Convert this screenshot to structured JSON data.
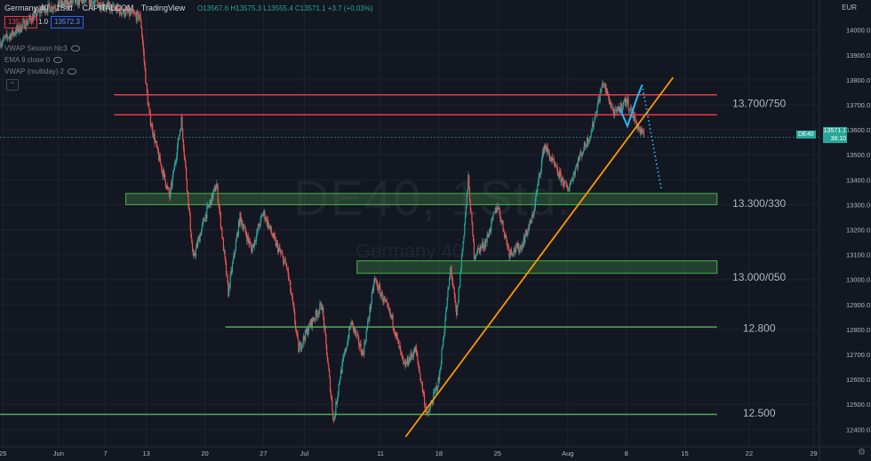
{
  "header": {
    "symbol": "Germany 40",
    "interval": "1Std.",
    "exchange": "CAPITALCOM",
    "source": "TradingView",
    "ohlc": "O13567.6 H13575.3 L13555.4 C13571.1 +3.7 (+0.03%)"
  },
  "order_panel": {
    "bid": "13571.3",
    "quantity": "1.0",
    "ask": "13572.3"
  },
  "indicators": [
    "VWAP Session hlc3",
    "EMA 9 close 0",
    "VWAP (multiday) 2"
  ],
  "watermark": {
    "symbol": "DE40, 1Std.",
    "name": "Germany 40"
  },
  "currency": "EUR",
  "last_price": {
    "value": "13571.1",
    "countdown": "38:10",
    "symbol": "DE40"
  },
  "colors": {
    "background": "#131722",
    "up": "#26a69a",
    "down": "#ef5350",
    "resistance": "#f23645",
    "support": "#4caf50",
    "trendline": "#ff9800",
    "projection": "#29b6f6"
  },
  "chart_data": {
    "type": "candlestick",
    "ylim": [
      12330,
      14120
    ],
    "y_ticks": [
      12400,
      12500,
      12600,
      12700,
      12800,
      12900,
      13000,
      13100,
      13200,
      13300,
      13400,
      13500,
      13600,
      13700,
      13800,
      13900,
      14000
    ],
    "x_ticks": [
      "25",
      "Jun",
      "7",
      "13",
      "20",
      "27",
      "Jul",
      "11",
      "18",
      "25",
      "Aug",
      "8",
      "15",
      "22",
      "29"
    ],
    "x_tick_index": [
      0.5,
      10,
      18,
      25,
      35,
      45,
      52,
      65,
      75,
      85,
      97,
      107,
      117,
      128,
      139
    ],
    "x_index_range": [
      0,
      140
    ],
    "price_path": [
      [
        0,
        13950
      ],
      [
        3,
        14000
      ],
      [
        7,
        14080
      ],
      [
        10,
        14100
      ],
      [
        15,
        14120
      ],
      [
        24,
        14050
      ],
      [
        25,
        13770
      ],
      [
        25.5,
        13660
      ],
      [
        27,
        13500
      ],
      [
        29,
        13330
      ],
      [
        31,
        13640
      ],
      [
        33,
        13080
      ],
      [
        35,
        13250
      ],
      [
        37,
        13380
      ],
      [
        39,
        12950
      ],
      [
        41,
        13250
      ],
      [
        43,
        13120
      ],
      [
        45,
        13270
      ],
      [
        47,
        13150
      ],
      [
        49,
        13050
      ],
      [
        50,
        12900
      ],
      [
        51,
        12720
      ],
      [
        53,
        12820
      ],
      [
        55,
        12900
      ],
      [
        57,
        12430
      ],
      [
        58,
        12600
      ],
      [
        60,
        12830
      ],
      [
        62,
        12700
      ],
      [
        64,
        13000
      ],
      [
        67,
        12840
      ],
      [
        69,
        12650
      ],
      [
        71,
        12720
      ],
      [
        73,
        12450
      ],
      [
        75,
        12600
      ],
      [
        77,
        13050
      ],
      [
        78,
        12850
      ],
      [
        79,
        13120
      ],
      [
        80,
        13400
      ],
      [
        81,
        13100
      ],
      [
        83,
        13150
      ],
      [
        85,
        13300
      ],
      [
        87,
        13110
      ],
      [
        89,
        13130
      ],
      [
        91,
        13250
      ],
      [
        93,
        13540
      ],
      [
        95,
        13440
      ],
      [
        97,
        13360
      ],
      [
        99,
        13490
      ],
      [
        101,
        13590
      ],
      [
        103,
        13790
      ],
      [
        105,
        13660
      ],
      [
        107,
        13720
      ],
      [
        109,
        13610
      ],
      [
        110,
        13571
      ]
    ],
    "horizontal_lines": [
      {
        "price": 13740,
        "x_range": [
          19.5,
          122.5
        ],
        "kind": "resistance"
      },
      {
        "price": 13660,
        "x_range": [
          19.5,
          122.5
        ],
        "kind": "resistance"
      },
      {
        "price": 12810,
        "x_range": [
          38.5,
          122.5
        ],
        "kind": "support"
      },
      {
        "price": 12460,
        "x_range": [
          0,
          122.5
        ],
        "kind": "support"
      }
    ],
    "zones": [
      {
        "from": 13300,
        "to": 13345,
        "x_range": [
          21.5,
          122.5
        ]
      },
      {
        "from": 13025,
        "to": 13075,
        "x_range": [
          61,
          122.5
        ]
      }
    ],
    "level_labels": [
      {
        "text": "13.700/750",
        "price": 13705
      },
      {
        "text": "13.300/330",
        "price": 13305
      },
      {
        "text": "13.000/050",
        "price": 13010
      },
      {
        "text": "12.800",
        "price": 12805
      },
      {
        "text": "12.500",
        "price": 12465
      }
    ],
    "trendline": {
      "from": [
        69.3,
        12370
      ],
      "to": [
        115,
        13810
      ]
    },
    "projection": {
      "solid": [
        [
          105.8,
          13690
        ],
        [
          107.2,
          13615
        ],
        [
          108.7,
          13720
        ],
        [
          109.7,
          13780
        ]
      ],
      "dotted": [
        [
          109.7,
          13780
        ],
        [
          111.5,
          13550
        ],
        [
          113,
          13360
        ]
      ]
    }
  }
}
